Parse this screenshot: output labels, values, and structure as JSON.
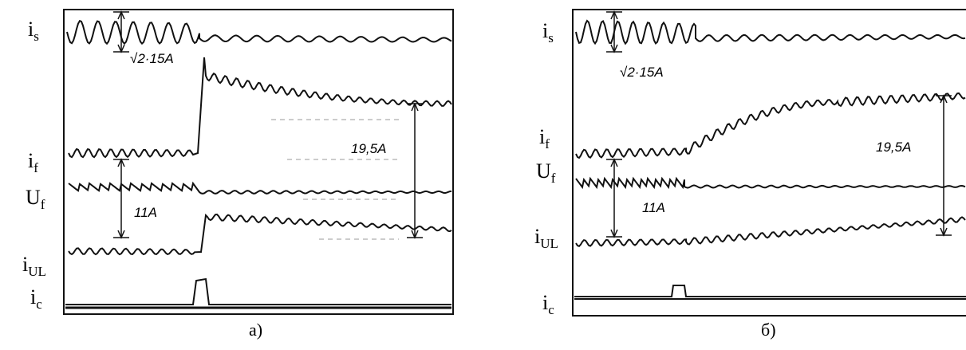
{
  "panels": [
    {
      "caption": "а)",
      "labels": [
        {
          "main": "i",
          "sub": "s"
        },
        {
          "main": "i",
          "sub": "f"
        },
        {
          "main": "U",
          "sub": "f"
        },
        {
          "main": "i",
          "sub": "UL"
        },
        {
          "main": "i",
          "sub": "c"
        }
      ],
      "annotations": [
        "√2·15A",
        "19,5A",
        "11A"
      ]
    },
    {
      "caption": "б)",
      "labels": [
        {
          "main": "i",
          "sub": "s"
        },
        {
          "main": "i",
          "sub": "f"
        },
        {
          "main": "U",
          "sub": "f"
        },
        {
          "main": "i",
          "sub": "UL"
        },
        {
          "main": "i",
          "sub": "c"
        }
      ],
      "annotations": [
        "√2·15A",
        "19,5A",
        "11A"
      ]
    }
  ]
}
